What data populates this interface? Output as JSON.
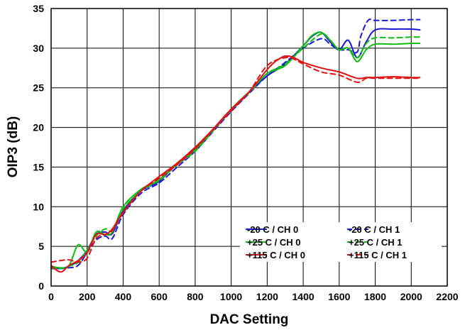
{
  "chart_data": {
    "type": "line",
    "xlabel": "DAC Setting",
    "ylabel": "OIP3 (dB)",
    "xlim": [
      0,
      2200
    ],
    "ylim": [
      0,
      35
    ],
    "xticks": [
      "0",
      "200",
      "400",
      "600",
      "800",
      "1000",
      "1200",
      "1400",
      "1600",
      "1800",
      "2000",
      "2200"
    ],
    "yticks": [
      "0",
      "5",
      "10",
      "15",
      "20",
      "25",
      "30",
      "35"
    ],
    "grid": true,
    "legend_position": "bottom-right",
    "series": [
      {
        "name": "-20 C / CH 0",
        "color": "#1a1ad6",
        "dash": "solid",
        "x": [
          0,
          50,
          100,
          150,
          200,
          250,
          300,
          340,
          400,
          500,
          600,
          700,
          800,
          900,
          1000,
          1100,
          1200,
          1300,
          1400,
          1450,
          1500,
          1550,
          1600,
          1650,
          1700,
          1750,
          1800,
          1900,
          2000,
          2048
        ],
        "y": [
          2.3,
          2.2,
          2.5,
          3.2,
          4.5,
          6.5,
          6.8,
          6.6,
          9.5,
          12.0,
          13.2,
          15.5,
          17.3,
          19.8,
          22.3,
          24.5,
          26.5,
          28.0,
          30.3,
          31.5,
          32.0,
          30.8,
          29.8,
          31.0,
          28.8,
          30.8,
          32.3,
          32.4,
          32.4,
          32.3
        ]
      },
      {
        "name": "-20 C / CH 1",
        "color": "#1a1ad6",
        "dash": "7,5",
        "x": [
          0,
          50,
          100,
          150,
          200,
          250,
          300,
          340,
          400,
          500,
          600,
          700,
          800,
          900,
          1000,
          1100,
          1200,
          1300,
          1400,
          1500,
          1550,
          1600,
          1650,
          1700,
          1720,
          1760,
          1800,
          1900,
          2000,
          2048
        ],
        "y": [
          2.2,
          2.2,
          2.3,
          2.6,
          4.2,
          5.8,
          6.3,
          6.0,
          9.0,
          11.7,
          13.0,
          15.0,
          17.0,
          19.5,
          22.0,
          24.3,
          26.5,
          28.2,
          30.0,
          31.2,
          30.5,
          29.8,
          29.8,
          29.5,
          31.5,
          33.5,
          33.5,
          33.5,
          33.6,
          33.6
        ]
      },
      {
        "name": "+25 C / CH 0",
        "color": "#11bb11",
        "dash": "solid",
        "x": [
          0,
          50,
          100,
          150,
          200,
          250,
          300,
          340,
          400,
          500,
          600,
          700,
          800,
          900,
          1000,
          1100,
          1200,
          1300,
          1400,
          1450,
          1500,
          1550,
          1600,
          1650,
          1700,
          1750,
          1800,
          1900,
          2000,
          2048
        ],
        "y": [
          2.5,
          2.3,
          2.6,
          5.2,
          4.3,
          6.8,
          6.5,
          6.8,
          10.0,
          12.2,
          13.4,
          15.5,
          17.2,
          19.7,
          22.3,
          24.5,
          26.8,
          27.8,
          30.3,
          31.6,
          32.0,
          31.0,
          29.8,
          30.0,
          28.3,
          29.8,
          30.5,
          30.5,
          30.6,
          30.6
        ]
      },
      {
        "name": "+25 C / CH 1",
        "color": "#11bb11",
        "dash": "7,5",
        "x": [
          0,
          50,
          100,
          150,
          200,
          250,
          300,
          340,
          400,
          500,
          600,
          700,
          800,
          900,
          1000,
          1100,
          1200,
          1300,
          1400,
          1500,
          1550,
          1600,
          1650,
          1700,
          1750,
          1800,
          1900,
          2000,
          2048
        ],
        "y": [
          2.3,
          2.2,
          2.5,
          3.0,
          4.5,
          6.3,
          7.2,
          7.0,
          9.7,
          12.0,
          13.3,
          15.3,
          17.0,
          19.6,
          22.2,
          24.4,
          26.8,
          28.0,
          30.0,
          31.8,
          31.0,
          29.8,
          30.0,
          28.8,
          30.6,
          31.3,
          31.3,
          31.4,
          31.4
        ]
      },
      {
        "name": "+115 C / CH 0",
        "color": "#e01010",
        "dash": "solid",
        "x": [
          0,
          30,
          60,
          100,
          150,
          200,
          250,
          300,
          340,
          400,
          500,
          600,
          700,
          800,
          900,
          1000,
          1100,
          1200,
          1250,
          1300,
          1350,
          1400,
          1500,
          1600,
          1700,
          1750,
          1800,
          1900,
          2000,
          2048
        ],
        "y": [
          2.6,
          2.0,
          1.8,
          2.6,
          3.2,
          4.2,
          6.5,
          6.5,
          7.2,
          9.3,
          12.0,
          13.8,
          15.5,
          17.5,
          19.8,
          22.3,
          24.5,
          27.3,
          28.4,
          29.0,
          28.8,
          28.2,
          27.5,
          27.0,
          26.2,
          26.3,
          26.3,
          26.4,
          26.3,
          26.3
        ]
      },
      {
        "name": "+115 C / CH 1",
        "color": "#e01010",
        "dash": "7,5",
        "x": [
          0,
          50,
          100,
          150,
          200,
          250,
          300,
          340,
          400,
          500,
          600,
          700,
          800,
          900,
          1000,
          1100,
          1200,
          1300,
          1350,
          1400,
          1500,
          1600,
          1700,
          1750,
          1800,
          1900,
          2000,
          2048
        ],
        "y": [
          3.0,
          3.2,
          3.3,
          3.0,
          3.5,
          6.0,
          6.5,
          7.0,
          9.2,
          12.0,
          13.6,
          15.3,
          17.3,
          19.7,
          22.1,
          24.5,
          27.8,
          28.8,
          28.6,
          28.0,
          27.0,
          26.6,
          25.7,
          26.2,
          26.2,
          26.2,
          26.2,
          26.2
        ]
      }
    ]
  }
}
